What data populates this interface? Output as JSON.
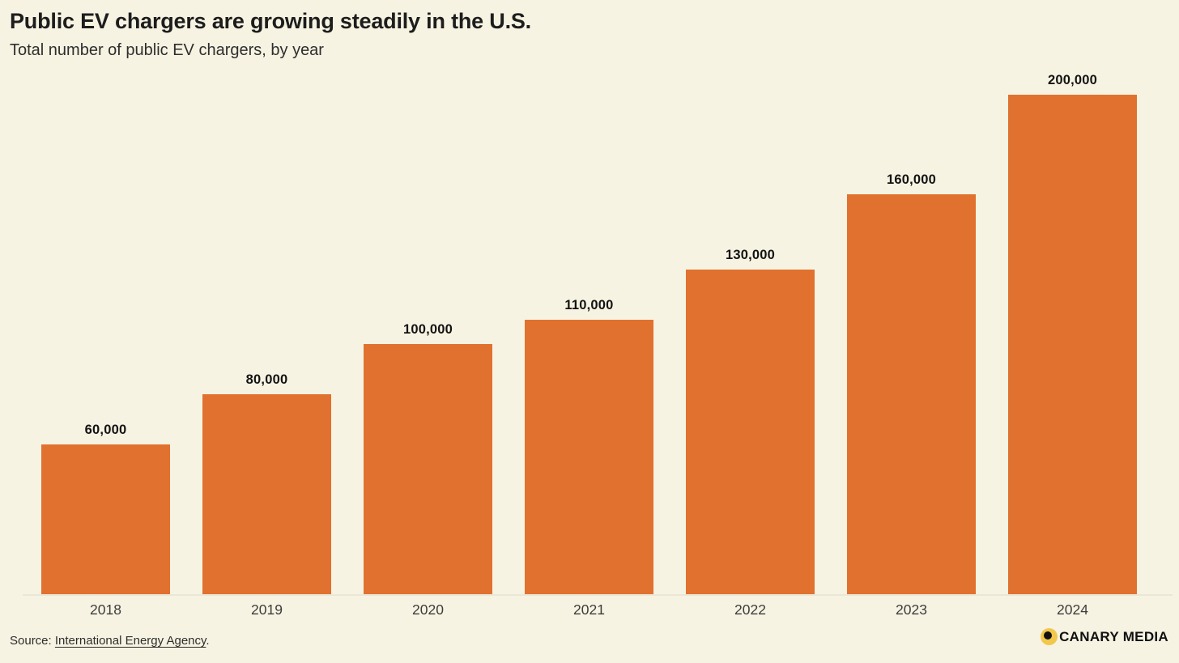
{
  "header": {
    "title": "Public EV chargers are growing steadily in the U.S.",
    "subtitle": "Total number of public EV chargers, by year"
  },
  "chart_data": {
    "type": "bar",
    "categories": [
      "2018",
      "2019",
      "2020",
      "2021",
      "2022",
      "2023",
      "2024"
    ],
    "values": [
      60000,
      80000,
      100000,
      110000,
      130000,
      160000,
      200000
    ],
    "value_labels": [
      "60,000",
      "80,000",
      "100,000",
      "110,000",
      "130,000",
      "160,000",
      "200,000"
    ],
    "title": "Public EV chargers are growing steadily in the U.S.",
    "subtitle": "Total number of public EV chargers, by year",
    "xlabel": "",
    "ylabel": "",
    "ylim": [
      0,
      200000
    ],
    "grid": false,
    "legend": false,
    "bar_color": "#e1712f"
  },
  "footer": {
    "source_prefix": "Source: ",
    "source_link": "International Energy Agency",
    "source_suffix": ".",
    "logo_text": "CANARY MEDIA"
  },
  "colors": {
    "background": "#f7f3e2",
    "bar": "#e1712f",
    "logo_yellow": "#f2c74b",
    "axis_line": "#ebe7d7"
  }
}
